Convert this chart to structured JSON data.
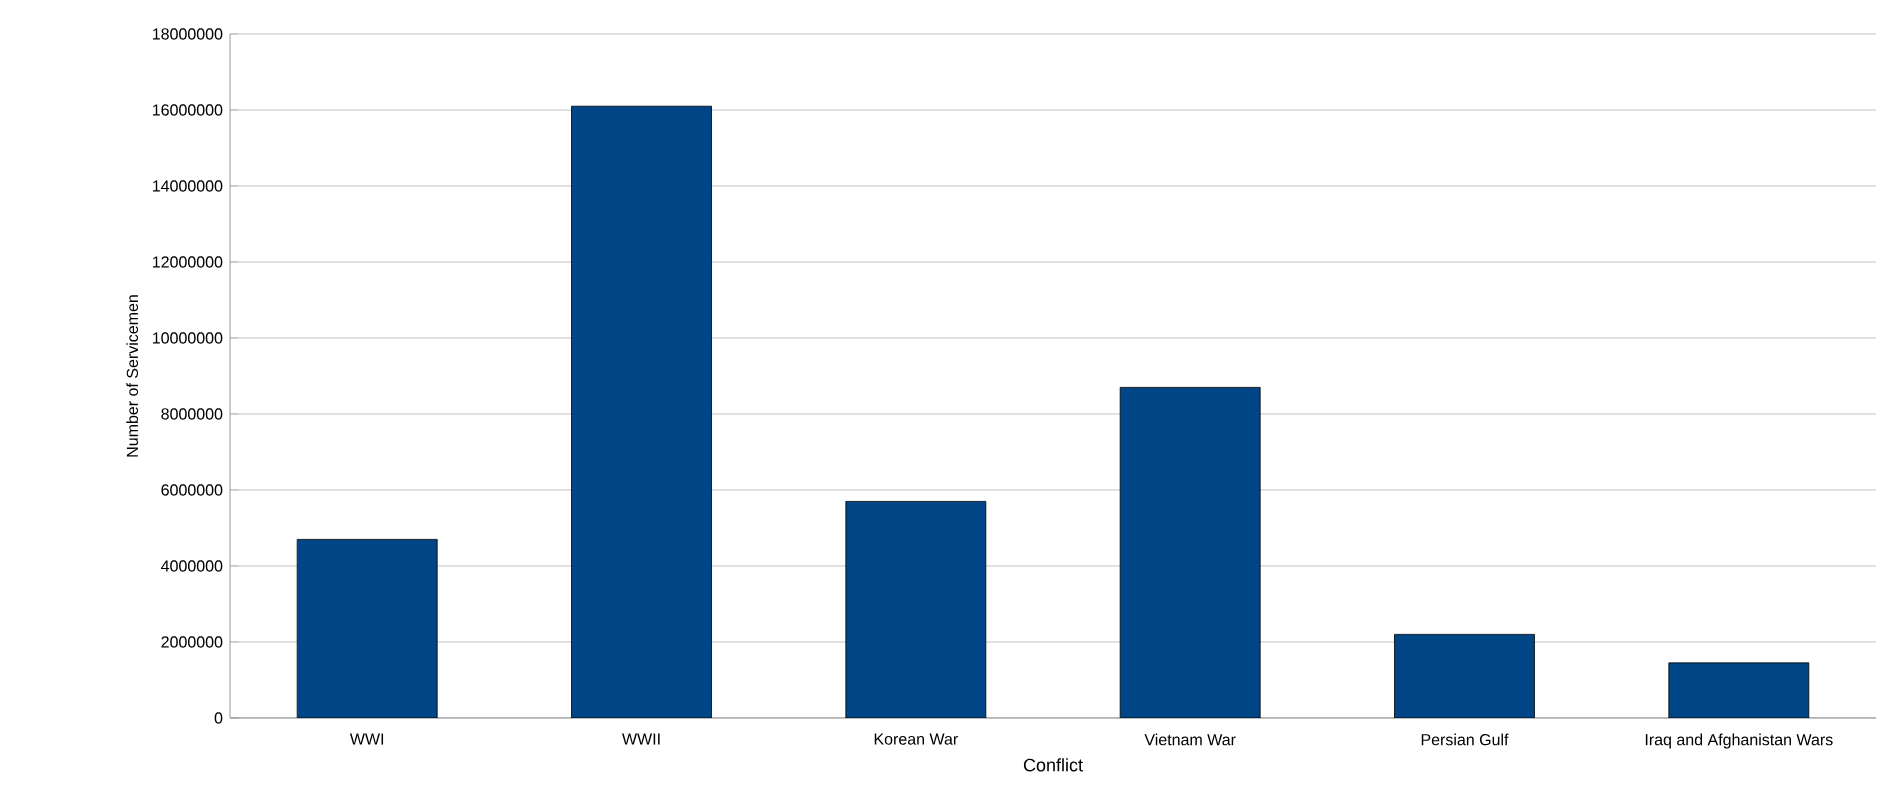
{
  "chart_data": {
    "type": "bar",
    "xlabel": "Conflict",
    "ylabel": "Number of Servicemen",
    "categories": [
      "WWI",
      "WWII",
      "Korean War",
      "Vietnam War",
      "Persian Gulf",
      "Iraq and Afghanistan Wars"
    ],
    "values": [
      4700000,
      16100000,
      5700000,
      8700000,
      2200000,
      1450000
    ],
    "color": "#004586",
    "ylim": [
      0,
      18000000
    ],
    "yticks": [
      0,
      2000000,
      4000000,
      6000000,
      8000000,
      10000000,
      12000000,
      14000000,
      16000000,
      18000000
    ],
    "grid": "y"
  }
}
